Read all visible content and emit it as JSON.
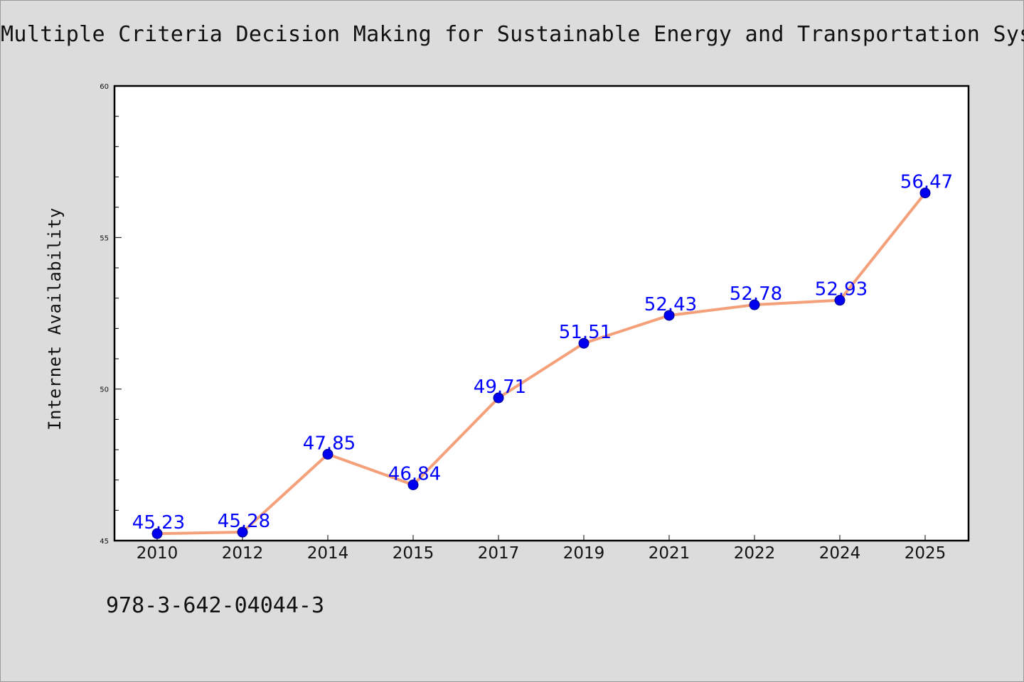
{
  "header": {
    "title": "Multiple Criteria Decision Making for Sustainable Energy and Transportation Syst"
  },
  "footer": {
    "isbn": "978-3-642-04044-3"
  },
  "colors": {
    "line": "#f4a07a",
    "marker": "#0000ee",
    "data_label": "#0000ff",
    "plot_background": "#ffffff",
    "page_background": "#dcdcdc"
  },
  "chart_data": {
    "type": "line",
    "title": "Multiple Criteria Decision Making for Sustainable Energy and Transportation Syst",
    "xlabel": "",
    "ylabel": "Internet Availability",
    "categories": [
      "2010",
      "2012",
      "2014",
      "2015",
      "2017",
      "2019",
      "2021",
      "2022",
      "2024",
      "2025"
    ],
    "series": [
      {
        "values": [
          45.23,
          45.28,
          47.85,
          46.84,
          49.71,
          51.51,
          52.43,
          52.78,
          52.93,
          56.47
        ],
        "labels": [
          "45.23",
          "45.28",
          "47.85",
          "46.84",
          "49.71",
          "51.51",
          "52.43",
          "52.78",
          "52.93",
          "56.47"
        ]
      }
    ],
    "ylim": [
      45,
      60
    ],
    "yticks": [
      "45",
      "50",
      "55",
      "60"
    ],
    "grid": false,
    "legend": "none"
  }
}
